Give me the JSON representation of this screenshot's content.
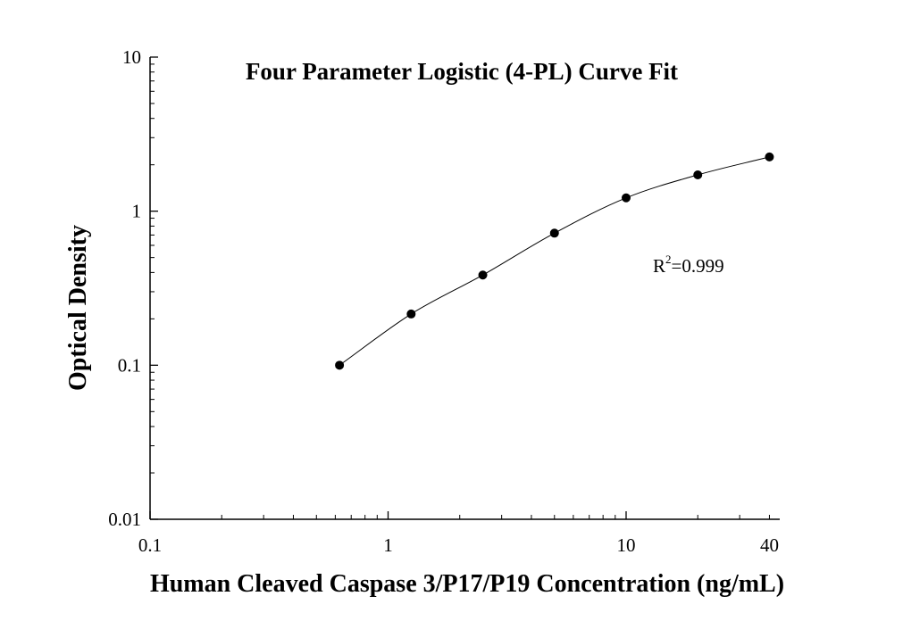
{
  "chart_data": {
    "type": "scatter",
    "title": "Four Parameter Logistic (4-PL) Curve Fit",
    "xlabel": "Human Cleaved Caspase 3/P17/P19 Concentration (ng/mL)",
    "ylabel": "Optical Density",
    "xscale": "log",
    "yscale": "log",
    "xlim": [
      0.1,
      50
    ],
    "ylim": [
      0.01,
      10
    ],
    "xticks": [
      0.1,
      1,
      10,
      40
    ],
    "xtick_labels": [
      "0.1",
      "1",
      "10",
      "40"
    ],
    "yticks": [
      0.01,
      0.1,
      1,
      10
    ],
    "ytick_labels": [
      "0.01",
      "0.1",
      "1",
      "10"
    ],
    "grid": false,
    "series": [
      {
        "x": [
          0.625,
          1.25,
          2.5,
          5,
          10,
          20,
          40
        ],
        "y": [
          0.1,
          0.215,
          0.385,
          0.72,
          1.22,
          1.72,
          2.25
        ]
      }
    ],
    "fit": {
      "model": "4-PL",
      "annotation_main": "R",
      "annotation_sup": "2",
      "annotation_value": "=0.999"
    }
  }
}
